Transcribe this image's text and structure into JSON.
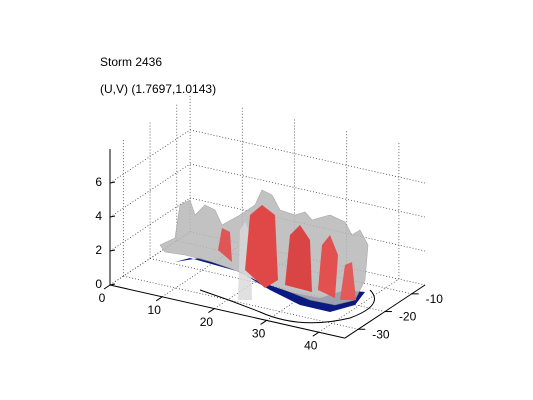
{
  "chart_data": {
    "type": "surface",
    "title": "Storm 2436",
    "subtitle": "(U,V) (1.7697,1.0143)",
    "xlim": [
      0,
      45
    ],
    "xticks": [
      0,
      10,
      20,
      30,
      40
    ],
    "ylim": [
      -35,
      -5
    ],
    "yticks": [
      -30,
      -20,
      -10
    ],
    "zlim": [
      0,
      8
    ],
    "zticks": [
      0,
      2,
      4,
      6
    ],
    "grid": true
  }
}
